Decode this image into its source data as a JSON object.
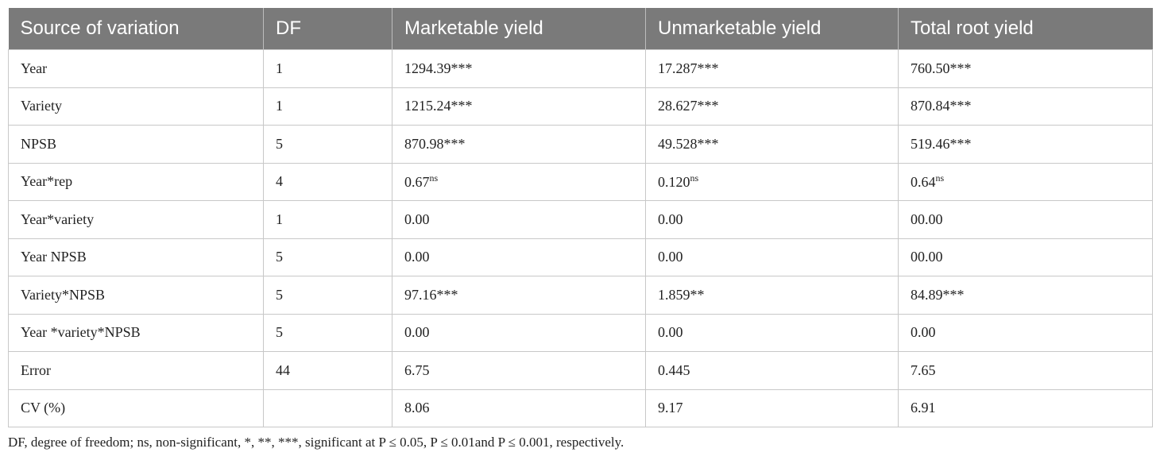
{
  "table": {
    "header": [
      "Source of variation",
      "DF",
      "Marketable yield",
      "Unmarketable yield",
      "Total root yield"
    ],
    "rows": [
      [
        "Year",
        "1",
        "1294.39***",
        "17.287***",
        "760.50***"
      ],
      [
        "Variety",
        "1",
        "1215.24***",
        "28.627***",
        "870.84***"
      ],
      [
        "NPSB",
        "5",
        "870.98***",
        "49.528***",
        "519.46***"
      ],
      [
        "Year*rep",
        "4",
        {
          "text": "0.67",
          "sup": "ns"
        },
        {
          "text": "0.120",
          "sup": "ns"
        },
        {
          "text": "0.64",
          "sup": "ns"
        }
      ],
      [
        "Year*variety",
        "1",
        "0.00",
        "0.00",
        "00.00"
      ],
      [
        "Year NPSB",
        "5",
        "0.00",
        "0.00",
        "00.00"
      ],
      [
        "Variety*NPSB",
        "5",
        "97.16***",
        "1.859**",
        "84.89***"
      ],
      [
        "Year *variety*NPSB",
        "5",
        "0.00",
        "0.00",
        "0.00"
      ],
      [
        "Error",
        "44",
        "6.75",
        "0.445",
        "7.65"
      ],
      [
        "CV (%)",
        null,
        "8.06",
        "9.17",
        "6.91"
      ]
    ]
  },
  "footnote": "DF, degree of freedom; ns, non-significant, *, **, ***, significant at P ≤ 0.05, P ≤ 0.01and P ≤ 0.001, respectively."
}
